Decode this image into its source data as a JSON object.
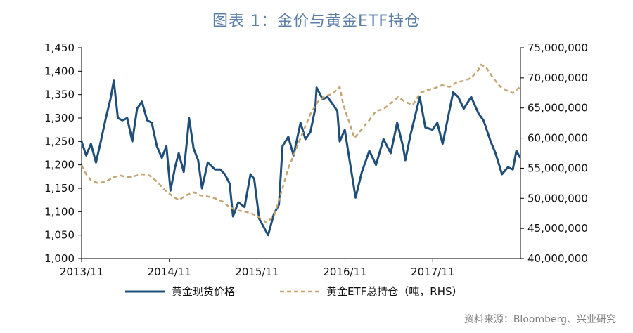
{
  "chart_data": {
    "type": "line",
    "title": "图表 1：金价与黄金ETF持仓",
    "x_tick_labels": [
      "2013/11",
      "2014/11",
      "2015/11",
      "2016/11",
      "2017/11"
    ],
    "x_range": [
      "2013/11",
      "2018/11"
    ],
    "left_axis": {
      "ticks": [
        "1,000",
        "1,050",
        "1,100",
        "1,150",
        "1,200",
        "1,250",
        "1,300",
        "1,350",
        "1,400",
        "1,450"
      ],
      "range": [
        1000,
        1450
      ]
    },
    "right_axis": {
      "ticks": [
        "40,000,000",
        "45,000,000",
        "50,000,000",
        "55,000,000",
        "60,000,000",
        "65,000,000",
        "70,000,000",
        "75,000,000"
      ],
      "range": [
        40000000,
        75000000
      ]
    },
    "series": [
      {
        "name": "黄金现货价格",
        "axis": "left",
        "color": "#1f4e79",
        "style": "solid",
        "points": [
          [
            "2013-11-01",
            1250
          ],
          [
            "2013-11-20",
            1220
          ],
          [
            "2013-12-10",
            1245
          ],
          [
            "2013-12-31",
            1205
          ],
          [
            "2014-01-20",
            1250
          ],
          [
            "2014-02-10",
            1300
          ],
          [
            "2014-03-01",
            1340
          ],
          [
            "2014-03-15",
            1380
          ],
          [
            "2014-04-01",
            1300
          ],
          [
            "2014-04-20",
            1295
          ],
          [
            "2014-05-10",
            1300
          ],
          [
            "2014-05-31",
            1250
          ],
          [
            "2014-06-20",
            1320
          ],
          [
            "2014-07-10",
            1335
          ],
          [
            "2014-08-01",
            1295
          ],
          [
            "2014-08-20",
            1290
          ],
          [
            "2014-09-10",
            1240
          ],
          [
            "2014-10-01",
            1215
          ],
          [
            "2014-10-20",
            1240
          ],
          [
            "2014-11-06",
            1145
          ],
          [
            "2014-11-25",
            1195
          ],
          [
            "2014-12-10",
            1225
          ],
          [
            "2014-12-31",
            1185
          ],
          [
            "2015-01-15",
            1260
          ],
          [
            "2015-01-22",
            1300
          ],
          [
            "2015-02-10",
            1235
          ],
          [
            "2015-03-01",
            1210
          ],
          [
            "2015-03-17",
            1150
          ],
          [
            "2015-04-10",
            1205
          ],
          [
            "2015-05-10",
            1190
          ],
          [
            "2015-06-01",
            1190
          ],
          [
            "2015-06-20",
            1180
          ],
          [
            "2015-07-10",
            1160
          ],
          [
            "2015-07-24",
            1090
          ],
          [
            "2015-08-15",
            1120
          ],
          [
            "2015-09-10",
            1110
          ],
          [
            "2015-10-05",
            1180
          ],
          [
            "2015-10-20",
            1170
          ],
          [
            "2015-11-10",
            1085
          ],
          [
            "2015-12-17",
            1050
          ],
          [
            "2016-01-10",
            1095
          ],
          [
            "2016-01-31",
            1115
          ],
          [
            "2016-02-15",
            1240
          ],
          [
            "2016-03-10",
            1260
          ],
          [
            "2016-04-01",
            1220
          ],
          [
            "2016-04-30",
            1290
          ],
          [
            "2016-05-20",
            1255
          ],
          [
            "2016-06-10",
            1270
          ],
          [
            "2016-06-30",
            1320
          ],
          [
            "2016-07-06",
            1365
          ],
          [
            "2016-07-31",
            1340
          ],
          [
            "2016-08-20",
            1345
          ],
          [
            "2016-09-10",
            1330
          ],
          [
            "2016-09-30",
            1315
          ],
          [
            "2016-10-10",
            1250
          ],
          [
            "2016-10-31",
            1275
          ],
          [
            "2016-11-20",
            1210
          ],
          [
            "2016-12-15",
            1130
          ],
          [
            "2017-01-10",
            1185
          ],
          [
            "2017-02-10",
            1230
          ],
          [
            "2017-03-10",
            1200
          ],
          [
            "2017-04-10",
            1255
          ],
          [
            "2017-05-10",
            1225
          ],
          [
            "2017-06-06",
            1290
          ],
          [
            "2017-06-30",
            1240
          ],
          [
            "2017-07-10",
            1210
          ],
          [
            "2017-08-01",
            1265
          ],
          [
            "2017-09-08",
            1345
          ],
          [
            "2017-10-01",
            1280
          ],
          [
            "2017-10-31",
            1275
          ],
          [
            "2017-11-20",
            1290
          ],
          [
            "2017-12-12",
            1245
          ],
          [
            "2018-01-25",
            1355
          ],
          [
            "2018-02-15",
            1345
          ],
          [
            "2018-03-10",
            1320
          ],
          [
            "2018-04-10",
            1345
          ],
          [
            "2018-05-10",
            1310
          ],
          [
            "2018-05-31",
            1295
          ],
          [
            "2018-06-30",
            1250
          ],
          [
            "2018-07-20",
            1225
          ],
          [
            "2018-08-16",
            1180
          ],
          [
            "2018-09-10",
            1195
          ],
          [
            "2018-09-30",
            1190
          ],
          [
            "2018-10-15",
            1230
          ],
          [
            "2018-10-31",
            1215
          ]
        ]
      },
      {
        "name": "黄金ETF总持仓（吨，RHS）",
        "axis": "right",
        "color": "#c4a572",
        "style": "dashed",
        "points": [
          [
            "2013-11-01",
            55500000
          ],
          [
            "2013-11-20",
            54000000
          ],
          [
            "2013-12-10",
            53000000
          ],
          [
            "2014-01-10",
            52500000
          ],
          [
            "2014-02-10",
            52800000
          ],
          [
            "2014-03-15",
            53500000
          ],
          [
            "2014-04-10",
            53800000
          ],
          [
            "2014-05-10",
            53500000
          ],
          [
            "2014-06-10",
            53700000
          ],
          [
            "2014-07-10",
            54000000
          ],
          [
            "2014-08-10",
            53800000
          ],
          [
            "2014-09-10",
            52800000
          ],
          [
            "2014-10-10",
            51500000
          ],
          [
            "2014-11-10",
            50500000
          ],
          [
            "2014-12-10",
            49700000
          ],
          [
            "2015-01-10",
            50500000
          ],
          [
            "2015-02-10",
            51000000
          ],
          [
            "2015-03-10",
            50500000
          ],
          [
            "2015-04-10",
            50300000
          ],
          [
            "2015-05-10",
            50000000
          ],
          [
            "2015-06-10",
            49500000
          ],
          [
            "2015-07-10",
            48500000
          ],
          [
            "2015-08-10",
            48000000
          ],
          [
            "2015-09-10",
            47800000
          ],
          [
            "2015-10-10",
            47500000
          ],
          [
            "2015-11-10",
            46800000
          ],
          [
            "2015-12-10",
            46000000
          ],
          [
            "2016-01-10",
            47000000
          ],
          [
            "2016-02-10",
            51000000
          ],
          [
            "2016-03-10",
            55000000
          ],
          [
            "2016-04-10",
            58000000
          ],
          [
            "2016-05-10",
            61000000
          ],
          [
            "2016-06-10",
            64000000
          ],
          [
            "2016-07-10",
            66000000
          ],
          [
            "2016-08-10",
            67000000
          ],
          [
            "2016-09-10",
            67300000
          ],
          [
            "2016-10-10",
            68500000
          ],
          [
            "2016-10-25",
            65500000
          ],
          [
            "2016-11-20",
            62500000
          ],
          [
            "2016-12-10",
            60000000
          ],
          [
            "2017-01-10",
            61500000
          ],
          [
            "2017-02-10",
            63000000
          ],
          [
            "2017-03-10",
            64500000
          ],
          [
            "2017-04-10",
            64800000
          ],
          [
            "2017-05-10",
            65800000
          ],
          [
            "2017-06-10",
            66800000
          ],
          [
            "2017-07-10",
            66000000
          ],
          [
            "2017-08-10",
            65500000
          ],
          [
            "2017-09-10",
            67500000
          ],
          [
            "2017-10-10",
            68000000
          ],
          [
            "2017-11-10",
            68300000
          ],
          [
            "2017-12-10",
            68800000
          ],
          [
            "2018-01-10",
            68500000
          ],
          [
            "2018-02-10",
            69300000
          ],
          [
            "2018-03-10",
            69500000
          ],
          [
            "2018-04-10",
            70000000
          ],
          [
            "2018-05-10",
            71300000
          ],
          [
            "2018-05-20",
            72200000
          ],
          [
            "2018-06-10",
            71800000
          ],
          [
            "2018-07-10",
            70000000
          ],
          [
            "2018-08-10",
            68500000
          ],
          [
            "2018-09-10",
            67800000
          ],
          [
            "2018-09-30",
            67500000
          ],
          [
            "2018-10-15",
            68000000
          ],
          [
            "2018-10-31",
            68500000
          ]
        ]
      }
    ],
    "legend": "bottom",
    "grid": false
  },
  "source_note": "资料来源：Bloomberg、兴业研究"
}
